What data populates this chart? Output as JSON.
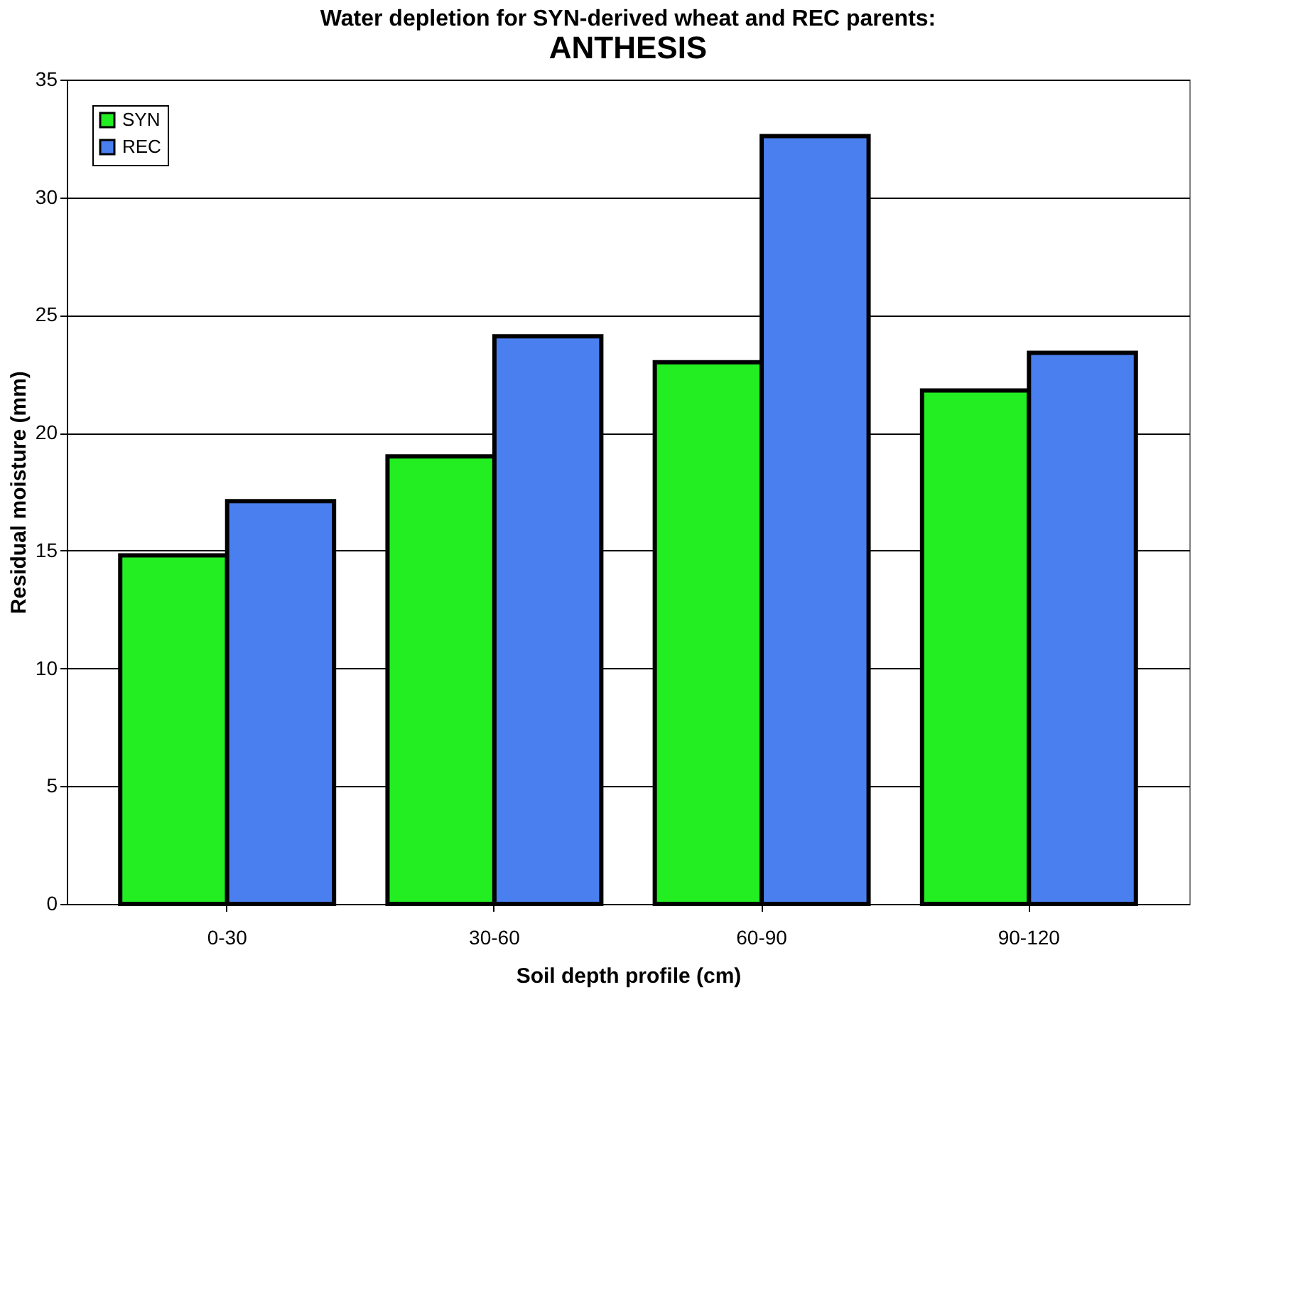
{
  "chart_data": {
    "type": "bar",
    "title": "Water depletion for SYN-derived wheat and REC parents:",
    "subtitle": "ANTHESIS",
    "xlabel": "Soil depth profile (cm)",
    "ylabel": "Residual moisture (mm)",
    "categories": [
      "0-30",
      "30-60",
      "60-90",
      "90-120"
    ],
    "series": [
      {
        "name": "SYN",
        "color": "#22ee22",
        "values": [
          14.8,
          19.0,
          23.0,
          21.8
        ]
      },
      {
        "name": "REC",
        "color": "#4a7ff0",
        "values": [
          17.1,
          24.1,
          32.6,
          23.4
        ]
      }
    ],
    "ylim": [
      0,
      35
    ],
    "yticks": [
      0,
      5,
      10,
      15,
      20,
      25,
      30,
      35
    ],
    "grid": "y",
    "legend": "top left"
  }
}
